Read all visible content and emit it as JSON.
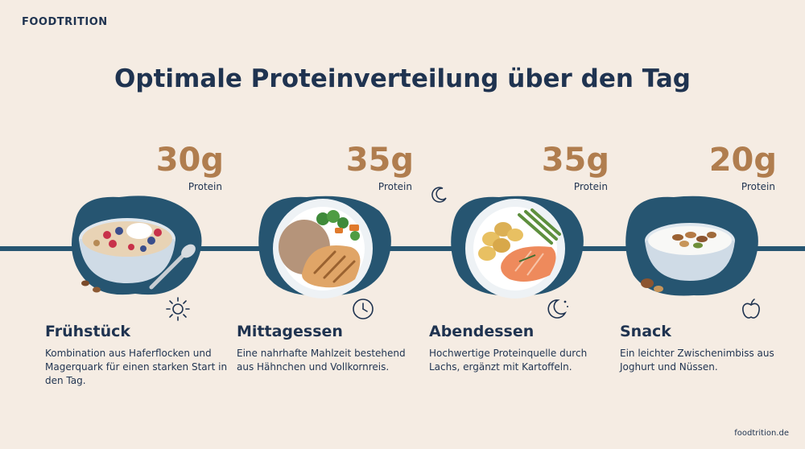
{
  "brand": "FOODTRITION",
  "title": "Optimale Proteinverteilung über den Tag",
  "meals": [
    {
      "amount": "30g",
      "unit": "Protein",
      "name": "Frühstück",
      "desc": "Kombination aus Haferflocken und Magerquark für einen starken Start in den Tag.",
      "icon": "sun-icon"
    },
    {
      "amount": "35g",
      "unit": "Protein",
      "name": "Mittagessen",
      "desc": "Eine nahrhafte Mahlzeit bestehend aus Hähnchen und Vollkornreis.",
      "icon": "clock-icon"
    },
    {
      "amount": "35g",
      "unit": "Protein",
      "name": "Abendessen",
      "desc": "Hochwertige Proteinquelle durch Lachs, ergänzt mit Kartoffeln.",
      "icon": "moon-icon"
    },
    {
      "amount": "20g",
      "unit": "Protein",
      "name": "Snack",
      "desc": "Ein leichter Zwischenimbiss aus Joghurt und Nüssen.",
      "icon": "apple-icon"
    }
  ],
  "footer": "foodtrition.de",
  "colors": {
    "background": "#f5ece3",
    "navy": "#1f3350",
    "teal": "#265571",
    "accent": "#b07d4e"
  }
}
